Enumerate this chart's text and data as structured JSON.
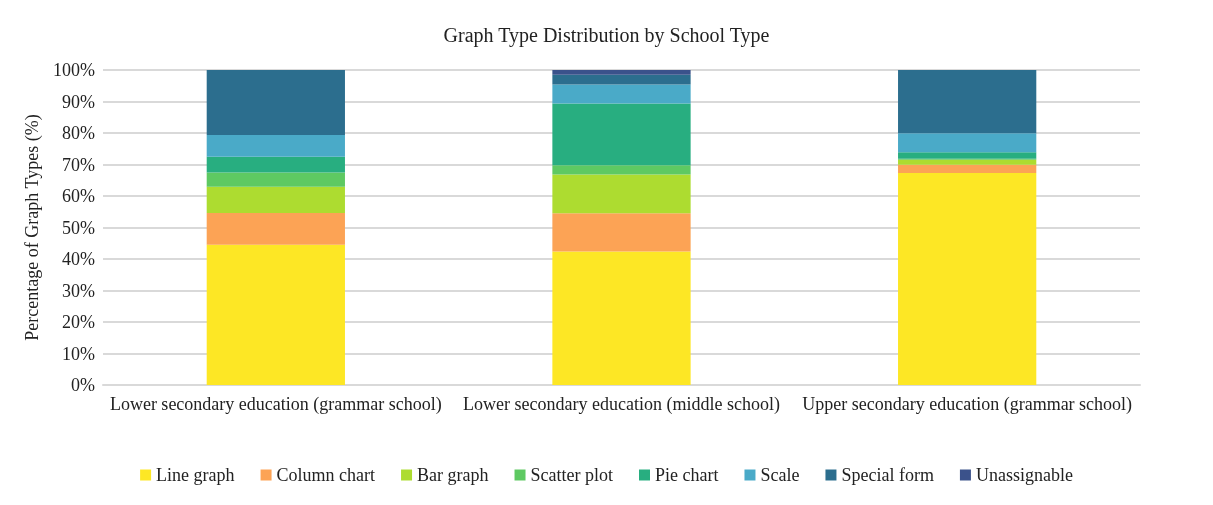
{
  "chart_data": {
    "type": "bar",
    "stacked": true,
    "title": "Graph Type Distribution by School Type",
    "ylabel": "Percentage of Graph Types (%)",
    "categories": [
      "Lower secondary education (grammar school)",
      "Lower secondary education (middle school)",
      "Upper secondary education (grammar school)"
    ],
    "series": [
      {
        "name": "Line graph",
        "color": "#fde725",
        "values": [
          44.5,
          42.4,
          67.3
        ]
      },
      {
        "name": "Column chart",
        "color": "#fca355",
        "values": [
          10.1,
          12.1,
          2.6
        ]
      },
      {
        "name": "Bar graph",
        "color": "#addc30",
        "values": [
          8.3,
          12.3,
          1.6
        ]
      },
      {
        "name": "Scatter plot",
        "color": "#5ec962",
        "values": [
          4.6,
          3.0,
          0.3
        ]
      },
      {
        "name": "Pie chart",
        "color": "#28ae80",
        "values": [
          5.0,
          19.6,
          2.1
        ]
      },
      {
        "name": "Scale",
        "color": "#4aaac8",
        "values": [
          6.9,
          6.0,
          6.0
        ]
      },
      {
        "name": "Special form",
        "color": "#2c6e8e",
        "values": [
          20.6,
          3.1,
          20.1
        ]
      },
      {
        "name": "Unassignable",
        "color": "#3b528b",
        "values": [
          0,
          1.5,
          0
        ]
      }
    ],
    "ylim": [
      0,
      100
    ],
    "yticks": [
      {
        "value": 0,
        "label": "0%"
      },
      {
        "value": 10,
        "label": "10%"
      },
      {
        "value": 20,
        "label": "20%"
      },
      {
        "value": 30,
        "label": "30%"
      },
      {
        "value": 40,
        "label": "40%"
      },
      {
        "value": 50,
        "label": "50%"
      },
      {
        "value": 60,
        "label": "60%"
      },
      {
        "value": 70,
        "label": "70%"
      },
      {
        "value": 80,
        "label": "80%"
      },
      {
        "value": 90,
        "label": "90%"
      },
      {
        "value": 100,
        "label": "100%"
      }
    ],
    "grid": "y",
    "legend": "bottom"
  }
}
